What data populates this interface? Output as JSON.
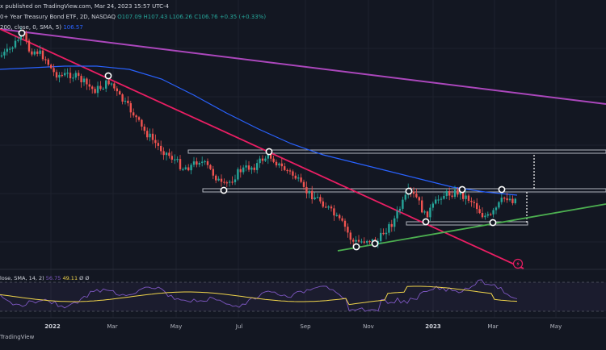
{
  "header": {
    "title": "x published on TradingView.com, Mar 24, 2023 15:57 UTC-4",
    "symbol": "0+ Year Treasury Bond ETF, 2D, NASDAQ",
    "ohlc": {
      "open": "O107.09",
      "high": "H107.43",
      "low": "L106.26",
      "close": "C106.76",
      "change": "+0.35 (+0.33%)"
    },
    "sma_label": "200, close, 0, SMA, 5)",
    "sma_value": "106.57"
  },
  "rsi_header": {
    "label": "lose, SMA, 14, 2)",
    "value1": "56.75",
    "value2": "49.11",
    "ghost": "Ø  Ø"
  },
  "x_axis": {
    "labels": [
      {
        "text": "2022",
        "bold": true
      },
      {
        "text": "Mar",
        "bold": false
      },
      {
        "text": "May",
        "bold": false
      },
      {
        "text": "Jul",
        "bold": false
      },
      {
        "text": "Sep",
        "bold": false
      },
      {
        "text": "Nov",
        "bold": false
      },
      {
        "text": "2023",
        "bold": true
      },
      {
        "text": "Mar",
        "bold": false
      },
      {
        "text": "May",
        "bold": false
      }
    ]
  },
  "footer": {
    "brand": "TradingView"
  },
  "colors": {
    "background": "#131722",
    "up": "#26a69a",
    "down": "#ef5350",
    "sma": "#2962ff",
    "trend_down": "#e91e63",
    "trend_long": "#ab47bc",
    "support": "#4caf50",
    "rsi": "#7e57c2",
    "rsi_ma": "#f0d44b",
    "zone": "#b2b5be"
  },
  "icons": {
    "alert": "lightning-icon"
  }
}
